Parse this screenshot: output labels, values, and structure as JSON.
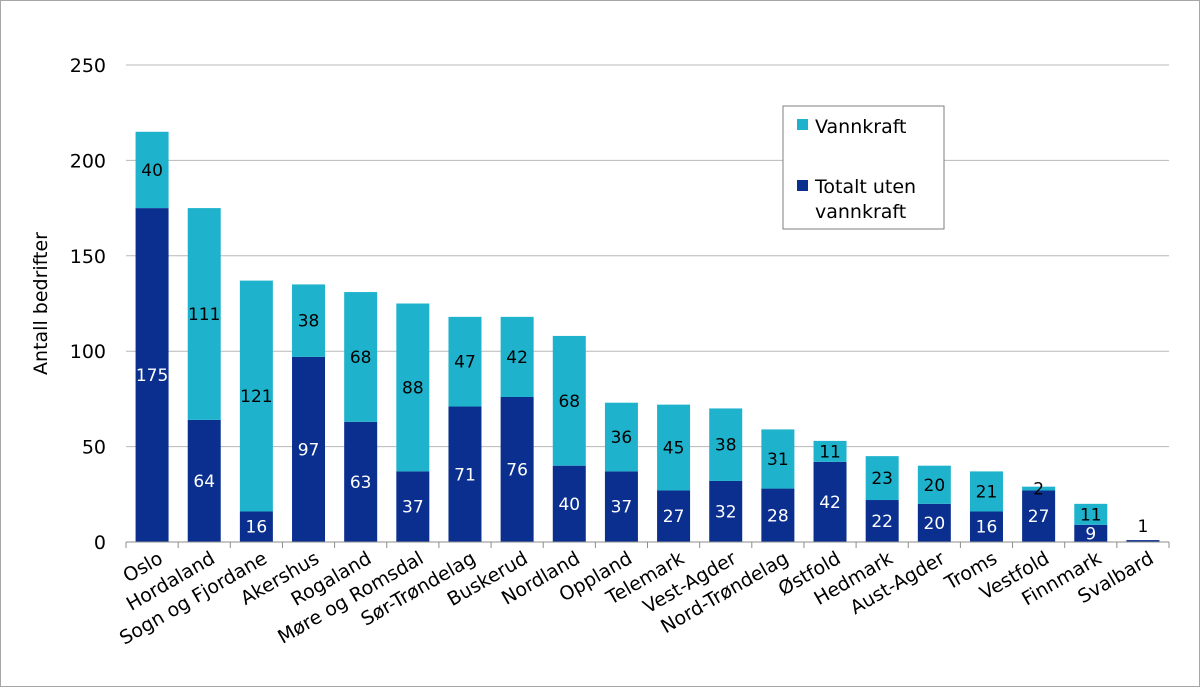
{
  "chart_data": {
    "type": "bar",
    "stacked": true,
    "title": "",
    "xlabel": "",
    "ylabel": "Antall bedrifter",
    "ylim": [
      0,
      250
    ],
    "yticks": [
      0,
      50,
      100,
      150,
      200,
      250
    ],
    "grid": true,
    "legend_position": "top-right",
    "categories": [
      "Oslo",
      "Hordaland",
      "Sogn og Fjordane",
      "Akershus",
      "Rogaland",
      "Møre og Romsdal",
      "Sør-Trøndelag",
      "Buskerud",
      "Nordland",
      "Oppland",
      "Telemark",
      "Vest-Agder",
      "Nord-Trøndelag",
      "Østfold",
      "Hedmark",
      "Aust-Agder",
      "Troms",
      "Vestfold",
      "Finnmark",
      "Svalbard"
    ],
    "series": [
      {
        "name": "Totalt uten vannkraft",
        "color": "#0a2f8f",
        "values": [
          175,
          64,
          16,
          97,
          63,
          37,
          71,
          76,
          40,
          37,
          27,
          32,
          28,
          42,
          22,
          20,
          16,
          27,
          9,
          1
        ]
      },
      {
        "name": "Vannkraft",
        "color": "#1fb2cc",
        "values": [
          40,
          111,
          121,
          38,
          68,
          88,
          47,
          42,
          68,
          36,
          45,
          38,
          31,
          11,
          23,
          20,
          21,
          2,
          11,
          0
        ]
      }
    ],
    "data_labels": {
      "Totalt uten vannkraft": [
        "175",
        "64",
        "16",
        "97",
        "63",
        "37",
        "71",
        "76",
        "40",
        "37",
        "27",
        "32",
        "28",
        "42",
        "22",
        "20",
        "16",
        "27",
        "9",
        "1"
      ],
      "Vannkraft": [
        "40",
        "111",
        "121",
        "38",
        "68",
        "88",
        "47",
        "42",
        "68",
        "36",
        "45",
        "38",
        "31",
        "11",
        "23",
        "20",
        "21",
        "2",
        "11",
        ""
      ]
    },
    "legend": [
      {
        "label_lines": [
          "Vannkraft"
        ],
        "series": "Vannkraft"
      },
      {
        "label_lines": [
          "Totalt uten",
          "vannkraft"
        ],
        "series": "Totalt uten vannkraft"
      }
    ]
  }
}
